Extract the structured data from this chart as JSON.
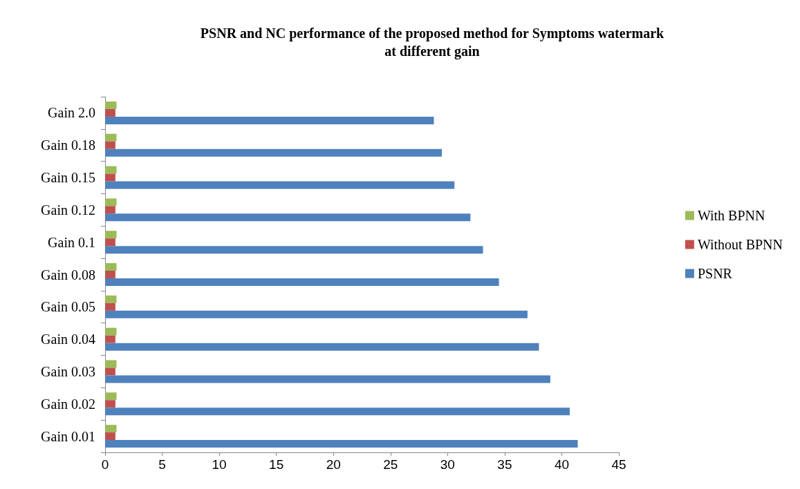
{
  "chart_data": {
    "type": "bar",
    "orientation": "horizontal",
    "title": "PSNR and NC performance of the proposed method for Symptoms watermark\nat different gain",
    "categories": [
      "Gain 2.0",
      "Gain 0.18",
      "Gain 0.15",
      "Gain 0.12",
      "Gain 0.1",
      "Gain 0.08",
      "Gain 0.05",
      "Gain 0.04",
      "Gain 0.03",
      "Gain 0.02",
      "Gain 0.01"
    ],
    "series": [
      {
        "name": "With BPNN",
        "color": "#9bbb59",
        "values": [
          1.0,
          1.0,
          1.0,
          1.0,
          1.0,
          1.0,
          1.0,
          1.0,
          1.0,
          1.0,
          1.0
        ]
      },
      {
        "name": "Without BPNN",
        "color": "#c0504d",
        "values": [
          0.9,
          0.9,
          0.9,
          0.9,
          0.9,
          0.9,
          0.9,
          0.9,
          0.9,
          0.9,
          0.9
        ]
      },
      {
        "name": "PSNR",
        "color": "#4f81bd",
        "values": [
          28.8,
          29.5,
          30.6,
          32.0,
          33.1,
          34.5,
          37.0,
          38.0,
          39.0,
          40.7,
          41.4
        ]
      }
    ],
    "xlim": [
      0,
      45
    ],
    "xticks": [
      0,
      5,
      10,
      15,
      20,
      25,
      30,
      35,
      40,
      45
    ],
    "grid": false,
    "legend": "right"
  }
}
